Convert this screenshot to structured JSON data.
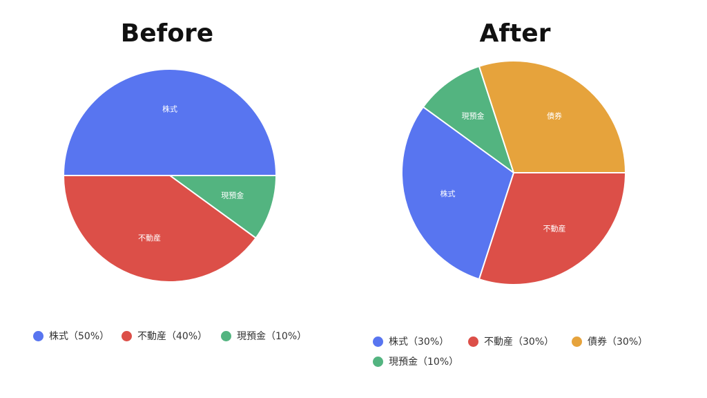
{
  "colors": {
    "stocks": "#5875f0",
    "real_estate": "#dc4f48",
    "bonds": "#e6a33c",
    "cash": "#53b480"
  },
  "chart_data": [
    {
      "type": "pie",
      "title": "Before",
      "slices": [
        {
          "label": "株式",
          "value": 50,
          "color_key": "stocks"
        },
        {
          "label": "現預金",
          "value": 10,
          "color_key": "cash"
        },
        {
          "label": "不動産",
          "value": 40,
          "color_key": "real_estate"
        }
      ],
      "legend": [
        {
          "text": "株式（50%）",
          "color_key": "stocks"
        },
        {
          "text": "不動産（40%）",
          "color_key": "real_estate"
        },
        {
          "text": "現預金（10%）",
          "color_key": "cash"
        }
      ],
      "legend_position": "bottom"
    },
    {
      "type": "pie",
      "title": "After",
      "slices": [
        {
          "label": "株式",
          "value": 30,
          "color_key": "stocks"
        },
        {
          "label": "現預金",
          "value": 10,
          "color_key": "cash"
        },
        {
          "label": "債券",
          "value": 30,
          "color_key": "bonds"
        },
        {
          "label": "不動産",
          "value": 30,
          "color_key": "real_estate"
        }
      ],
      "legend": [
        {
          "text": "株式（30%）",
          "color_key": "stocks"
        },
        {
          "text": "不動産（30%）",
          "color_key": "real_estate"
        },
        {
          "text": "債券（30%）",
          "color_key": "bonds"
        },
        {
          "text": "現預金（10%）",
          "color_key": "cash"
        }
      ],
      "legend_position": "bottom"
    }
  ]
}
